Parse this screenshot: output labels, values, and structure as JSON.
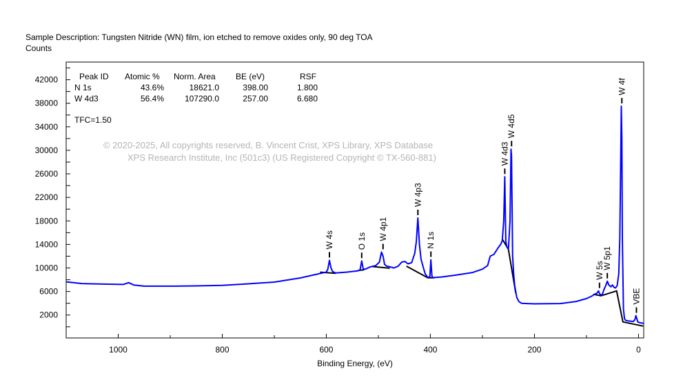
{
  "header": {
    "description": "Sample Description:  Tungsten Nitride (WN) film, ion etched to remove oxides only, 90 deg TOA",
    "ylabel": "Counts"
  },
  "quant_table": {
    "columns": [
      "Peak ID",
      "Atomic %",
      "Norm. Area",
      "BE (eV)",
      "RSF"
    ],
    "rows": [
      [
        "N 1s",
        "43.6%",
        "18621.0",
        "398.00",
        "1.800"
      ],
      [
        "W 4d3",
        "56.4%",
        "107290.0",
        "257.00",
        "6.680"
      ]
    ],
    "tfc": "TFC=1.50"
  },
  "watermark": {
    "line1": "©  2020-2025,  All copyrights reserved,   B. Vincent Crist,  XPS Library, XPS Database",
    "line2": "XPS Research Institute, Inc (501c3)   (US Registered Copyright © TX-560-881)"
  },
  "chart_data": {
    "type": "line",
    "title": "",
    "xlabel": "Binding Energy, (eV)",
    "ylabel": "Counts",
    "xlim": [
      1100,
      -10
    ],
    "ylim": [
      -1900,
      45000
    ],
    "x_reversed": true,
    "grid": false,
    "x_ticks": [
      1000,
      800,
      600,
      400,
      200,
      0
    ],
    "y_ticks": [
      2000,
      6000,
      10000,
      14000,
      18000,
      22000,
      26000,
      30000,
      34000,
      38000,
      42000
    ],
    "colors": {
      "spectrum": "#0000ff",
      "background": "#000000",
      "watermark": "#b4b4b4"
    },
    "series": [
      {
        "x": [
          1100,
          1070,
          1050,
          1020,
          990,
          980,
          970,
          950,
          900,
          850,
          800,
          750,
          700,
          650,
          620,
          610,
          600,
          597,
          594,
          591,
          588,
          582,
          560,
          540,
          535,
          532,
          529,
          525,
          515,
          505,
          498,
          494,
          491,
          488,
          484,
          478,
          470,
          462,
          455,
          449,
          443,
          436,
          430,
          427,
          424,
          421,
          418,
          414,
          410,
          405,
          401,
          399,
          397,
          395,
          390,
          380,
          350,
          320,
          300,
          290,
          285,
          278,
          270,
          265,
          262,
          259,
          257,
          255,
          253,
          250,
          247,
          245,
          244,
          242,
          240,
          238,
          234,
          230,
          225,
          215,
          200,
          150,
          120,
          100,
          90,
          85,
          80,
          77,
          74,
          70,
          66,
          63,
          60,
          57,
          53,
          50,
          47,
          44,
          41,
          38,
          36,
          34,
          33,
          32,
          31,
          29,
          27,
          25,
          20,
          10,
          7,
          5,
          3,
          1,
          -5,
          -10
        ],
        "y": [
          7650,
          7350,
          7300,
          7250,
          7200,
          7500,
          7100,
          6900,
          6900,
          6950,
          7050,
          7300,
          7600,
          8300,
          8900,
          9100,
          9300,
          9800,
          11300,
          10000,
          9400,
          9150,
          9300,
          9500,
          9700,
          11200,
          9800,
          9800,
          10200,
          10400,
          11000,
          12700,
          12000,
          10600,
          10300,
          10200,
          10000,
          10300,
          11000,
          11100,
          10700,
          10900,
          12500,
          14500,
          18500,
          14000,
          11500,
          10200,
          9000,
          8400,
          8500,
          11400,
          8600,
          8350,
          8400,
          8450,
          8800,
          9200,
          9800,
          10400,
          12000,
          12300,
          13400,
          14000,
          14600,
          18000,
          25500,
          14500,
          13600,
          13200,
          18000,
          30200,
          29000,
          12000,
          9000,
          7000,
          5000,
          4300,
          4000,
          3950,
          3900,
          3950,
          4300,
          4800,
          5200,
          5500,
          5700,
          6100,
          5500,
          5400,
          6400,
          7000,
          7750,
          7100,
          6800,
          7100,
          6700,
          6600,
          7000,
          9000,
          15000,
          30000,
          37500,
          32000,
          15000,
          3000,
          1400,
          1100,
          1000,
          900,
          1200,
          1900,
          1300,
          800,
          650,
          600
        ]
      }
    ],
    "background_segments": [
      {
        "x": [
          612,
          582
        ],
        "y": [
          9280,
          9100
        ]
      },
      {
        "x": [
          540,
          527
        ],
        "y": [
          9550,
          9700
        ]
      },
      {
        "x": [
          512,
          478
        ],
        "y": [
          10250,
          9950
        ]
      },
      {
        "x": [
          446,
          405,
          392
        ],
        "y": [
          10300,
          8330,
          8330
        ]
      },
      {
        "x": [
          261,
          250,
          236
        ],
        "y": [
          14800,
          13150,
          5750
        ]
      },
      {
        "x": [
          87,
          72,
          42,
          30,
          -9
        ],
        "y": [
          5520,
          5280,
          6100,
          830,
          120
        ]
      }
    ],
    "annotations": [
      {
        "label": "W 4s",
        "x": 594,
        "y": 11300
      },
      {
        "label": "O 1s",
        "x": 532,
        "y": 11200
      },
      {
        "label": "W 4p1",
        "x": 491,
        "y": 12700
      },
      {
        "label": "W 4p3",
        "x": 424,
        "y": 18500
      },
      {
        "label": "N 1s",
        "x": 399,
        "y": 11400
      },
      {
        "label": "W 4d3",
        "x": 257,
        "y": 25500
      },
      {
        "label": "W 4d5",
        "x": 244,
        "y": 30200
      },
      {
        "label": "W 5s",
        "x": 75,
        "y": 6100
      },
      {
        "label": "W 5p1",
        "x": 60,
        "y": 7750
      },
      {
        "label": "W 4f",
        "x": 32,
        "y": 37500
      },
      {
        "label": "VBE",
        "x": 4,
        "y": 1900
      }
    ]
  }
}
